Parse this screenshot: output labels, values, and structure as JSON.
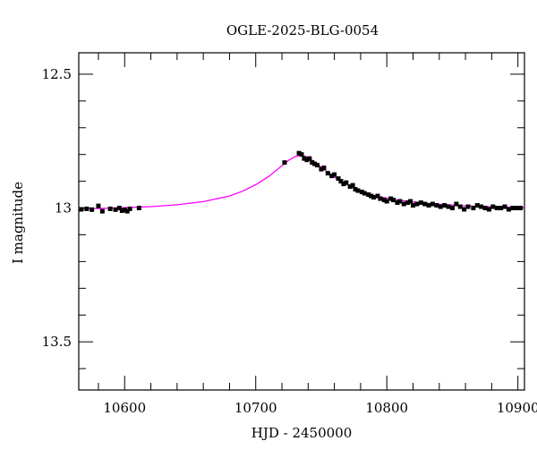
{
  "chart_data": {
    "type": "scatter",
    "title": "OGLE-2025-BLG-0054",
    "xlabel": "HJD - 2450000",
    "ylabel": "I magnitude",
    "xlim": [
      10565,
      10905
    ],
    "ylim": [
      13.68,
      12.42
    ],
    "y_inverted": true,
    "xticks": [
      10600,
      10700,
      10800,
      10900
    ],
    "xtick_labels": [
      "10600",
      "10700",
      "10800",
      "10900"
    ],
    "yticks": [
      12.5,
      13,
      13.5
    ],
    "ytick_labels": [
      "12.5",
      "13",
      "13.5"
    ],
    "grid": false,
    "legend": "none",
    "series": [
      {
        "kind": "points",
        "color": "#000000",
        "x": [
          10567,
          10571,
          10575,
          10580,
          10583,
          10589,
          10593,
          10596,
          10598,
          10600,
          10602,
          10604,
          10611,
          10722,
          10733,
          10735,
          10737,
          10739,
          10741,
          10743,
          10745,
          10747,
          10750,
          10752,
          10755,
          10758,
          10760,
          10763,
          10765,
          10767,
          10769,
          10772,
          10774,
          10776,
          10778,
          10781,
          10783,
          10786,
          10788,
          10790,
          10793,
          10795,
          10798,
          10800,
          10803,
          10805,
          10808,
          10810,
          10813,
          10816,
          10818,
          10820,
          10823,
          10826,
          10829,
          10832,
          10835,
          10838,
          10841,
          10844,
          10847,
          10850,
          10853,
          10856,
          10859,
          10862,
          10866,
          10869,
          10872,
          10875,
          10878,
          10881,
          10884,
          10887,
          10890,
          10893,
          10896,
          10899,
          10902
        ],
        "y": [
          13.005,
          13.003,
          13.006,
          12.992,
          13.012,
          13.003,
          13.006,
          13.0,
          13.01,
          13.007,
          13.012,
          13.003,
          13.0,
          12.83,
          12.795,
          12.8,
          12.815,
          12.82,
          12.815,
          12.83,
          12.835,
          12.84,
          12.855,
          12.85,
          12.87,
          12.88,
          12.875,
          12.89,
          12.9,
          12.91,
          12.905,
          12.92,
          12.915,
          12.93,
          12.935,
          12.94,
          12.945,
          12.95,
          12.955,
          12.96,
          12.955,
          12.965,
          12.97,
          12.975,
          12.965,
          12.97,
          12.98,
          12.975,
          12.985,
          12.98,
          12.975,
          12.99,
          12.985,
          12.98,
          12.985,
          12.99,
          12.985,
          12.99,
          12.995,
          12.99,
          12.995,
          13.0,
          12.985,
          12.995,
          13.005,
          12.995,
          13.0,
          12.99,
          12.995,
          13.0,
          13.005,
          12.995,
          13.0,
          13.0,
          12.995,
          13.005,
          13.0,
          13.0,
          13.0
        ]
      },
      {
        "kind": "model-curve",
        "color": "#ff00ff",
        "x": [
          10565,
          10580,
          10600,
          10620,
          10640,
          10660,
          10680,
          10690,
          10700,
          10710,
          10715,
          10720,
          10725,
          10730,
          10734,
          10738,
          10742,
          10746,
          10750,
          10755,
          10760,
          10766,
          10772,
          10778,
          10785,
          10792,
          10800,
          10810,
          10820,
          10830,
          10840,
          10850,
          10860,
          10870,
          10880,
          10890,
          10905
        ],
        "y": [
          13.003,
          13.002,
          12.999,
          12.995,
          12.988,
          12.976,
          12.955,
          12.937,
          12.913,
          12.882,
          12.862,
          12.842,
          12.822,
          12.808,
          12.803,
          12.807,
          12.818,
          12.832,
          12.848,
          12.867,
          12.885,
          12.903,
          12.919,
          12.932,
          12.945,
          12.955,
          12.963,
          12.971,
          12.977,
          12.982,
          12.986,
          12.989,
          12.992,
          12.994,
          12.996,
          12.997,
          12.999
        ]
      }
    ]
  }
}
